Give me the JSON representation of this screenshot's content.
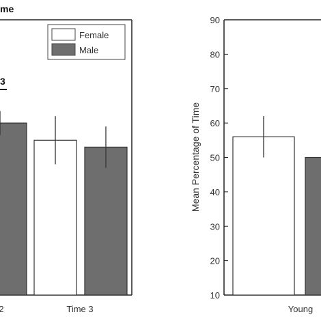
{
  "chart_data": [
    {
      "type": "bar",
      "title": "me",
      "categories": [
        "2",
        "Time 3"
      ],
      "series": [
        {
          "name": "Female",
          "color": "#ffffff",
          "values": [
            null,
            55
          ],
          "errors": [
            null,
            7
          ]
        },
        {
          "name": "Male",
          "color": "#6e6e6e",
          "values": [
            60,
            53
          ],
          "errors": [
            3.5,
            6
          ]
        }
      ],
      "annotation": "3",
      "ylim": [
        10,
        90
      ],
      "legend_position": "top-right"
    },
    {
      "type": "bar",
      "ylabel": "Mean Percentage of Time",
      "categories": [
        "Young"
      ],
      "yticks": [
        10,
        20,
        30,
        40,
        50,
        60,
        70,
        80,
        90
      ],
      "ylim": [
        10,
        90
      ],
      "series": [
        {
          "color": "#ffffff",
          "values": [
            56
          ],
          "errors": [
            6
          ]
        },
        {
          "color": "#6e6e6e",
          "values": [
            50
          ],
          "errors": [
            null
          ]
        }
      ]
    }
  ]
}
